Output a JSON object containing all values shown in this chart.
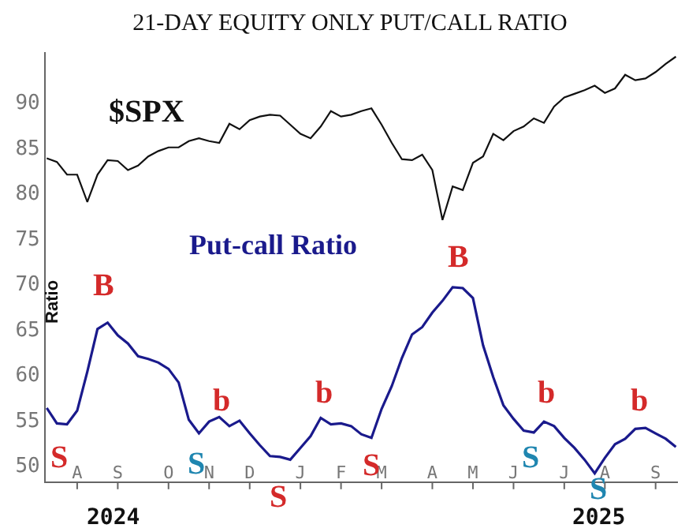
{
  "chart_data": {
    "type": "line",
    "title": "21-DAY EQUITY ONLY PUT/CALL RATIO",
    "ylabel": "Ratio",
    "categories": [
      null,
      null,
      null,
      "A",
      null,
      null,
      null,
      "S",
      null,
      null,
      null,
      null,
      "O",
      null,
      null,
      null,
      "N",
      null,
      null,
      null,
      "D",
      null,
      null,
      null,
      null,
      "J",
      null,
      null,
      null,
      "F",
      null,
      null,
      null,
      "M",
      null,
      null,
      null,
      null,
      "A",
      null,
      null,
      null,
      "M",
      null,
      null,
      null,
      "J",
      null,
      null,
      null,
      null,
      "J",
      null,
      null,
      null,
      "A",
      null,
      null,
      null,
      null,
      "S",
      null,
      null
    ],
    "ylim": [
      48.2,
      95.5
    ],
    "yticks": [
      50,
      55,
      60,
      65,
      70,
      75,
      80,
      85,
      90
    ],
    "grid": false,
    "legend": false,
    "series": [
      {
        "name": "$SPX",
        "color": "#111111",
        "values": [
          83.8,
          83.4,
          82,
          82,
          79,
          82,
          83.6,
          83.5,
          82.5,
          83,
          84,
          84.6,
          85,
          85,
          85.7,
          86,
          85.7,
          85.5,
          87.6,
          87,
          88,
          88.4,
          88.6,
          88.5,
          87.5,
          86.5,
          86,
          87.3,
          89,
          88.4,
          88.6,
          89,
          89.3,
          87.5,
          85.5,
          83.7,
          83.6,
          84.2,
          82.5,
          77,
          80.7,
          80.3,
          83.3,
          84,
          86.5,
          85.8,
          86.8,
          87.3,
          88.2,
          87.7,
          89.5,
          90.5,
          90.9,
          91.3,
          91.8,
          91,
          91.5,
          93,
          92.4,
          92.6,
          93.3,
          94.2,
          95
        ]
      },
      {
        "name": "Put-call Ratio",
        "color": "#1a1a8c",
        "values": [
          56.3,
          54.6,
          54.5,
          56,
          60.3,
          65,
          65.7,
          64.3,
          63.4,
          62,
          61.7,
          61.3,
          60.6,
          59.1,
          55,
          53.5,
          54.8,
          55.3,
          54.3,
          54.9,
          53.5,
          52.2,
          51,
          50.9,
          50.6,
          51.9,
          53.2,
          55.2,
          54.5,
          54.6,
          54.3,
          53.4,
          53,
          56.2,
          58.7,
          61.8,
          64.4,
          65.2,
          66.8,
          68.1,
          69.6,
          69.5,
          68.4,
          63.2,
          59.7,
          56.6,
          55.1,
          53.8,
          53.6,
          54.8,
          54.3,
          53,
          51.9,
          50.6,
          49.1,
          50.8,
          52.3,
          52.9,
          54,
          54.1,
          53.5,
          52.9,
          52
        ]
      }
    ],
    "annotations": [
      "B",
      "B",
      "b",
      "b",
      "b",
      "b",
      "S",
      "S",
      "S",
      "S",
      "S",
      "S",
      "2024",
      "2025"
    ]
  }
}
